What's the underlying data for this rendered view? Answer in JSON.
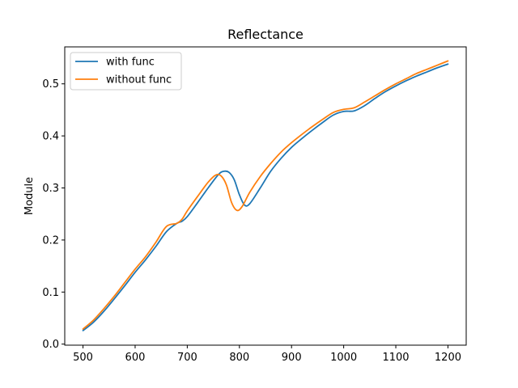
{
  "chart_data": {
    "type": "line",
    "title": "Reflectance",
    "xlabel": "",
    "ylabel": "Module",
    "xlim": [
      465,
      1235
    ],
    "ylim": [
      -0.002,
      0.571
    ],
    "xticks": [
      500,
      600,
      700,
      800,
      900,
      1000,
      1100,
      1200
    ],
    "yticks": [
      0.0,
      0.1,
      0.2,
      0.3,
      0.4,
      0.5
    ],
    "ytick_labels": [
      "0.0",
      "0.1",
      "0.2",
      "0.3",
      "0.4",
      "0.5"
    ],
    "grid": false,
    "legend": {
      "placement": "upper-left"
    },
    "series": [
      {
        "name": "with func",
        "color": "#1f77b4",
        "points": [
          [
            500,
            0.026
          ],
          [
            520,
            0.042
          ],
          [
            540,
            0.063
          ],
          [
            560,
            0.087
          ],
          [
            580,
            0.112
          ],
          [
            600,
            0.138
          ],
          [
            620,
            0.162
          ],
          [
            640,
            0.188
          ],
          [
            660,
            0.216
          ],
          [
            680,
            0.232
          ],
          [
            690,
            0.236
          ],
          [
            700,
            0.245
          ],
          [
            720,
            0.272
          ],
          [
            740,
            0.3
          ],
          [
            760,
            0.326
          ],
          [
            770,
            0.332
          ],
          [
            780,
            0.33
          ],
          [
            790,
            0.316
          ],
          [
            800,
            0.287
          ],
          [
            810,
            0.267
          ],
          [
            820,
            0.27
          ],
          [
            840,
            0.3
          ],
          [
            860,
            0.332
          ],
          [
            880,
            0.357
          ],
          [
            900,
            0.378
          ],
          [
            920,
            0.395
          ],
          [
            940,
            0.411
          ],
          [
            960,
            0.426
          ],
          [
            980,
            0.44
          ],
          [
            1000,
            0.447
          ],
          [
            1020,
            0.448
          ],
          [
            1040,
            0.458
          ],
          [
            1060,
            0.472
          ],
          [
            1080,
            0.485
          ],
          [
            1100,
            0.496
          ],
          [
            1120,
            0.506
          ],
          [
            1140,
            0.515
          ],
          [
            1160,
            0.523
          ],
          [
            1180,
            0.531
          ],
          [
            1200,
            0.538
          ]
        ]
      },
      {
        "name": "without func",
        "color": "#ff7f0e",
        "points": [
          [
            500,
            0.029
          ],
          [
            520,
            0.046
          ],
          [
            540,
            0.068
          ],
          [
            560,
            0.092
          ],
          [
            580,
            0.118
          ],
          [
            600,
            0.144
          ],
          [
            620,
            0.168
          ],
          [
            640,
            0.196
          ],
          [
            660,
            0.226
          ],
          [
            680,
            0.232
          ],
          [
            690,
            0.24
          ],
          [
            700,
            0.256
          ],
          [
            720,
            0.284
          ],
          [
            740,
            0.311
          ],
          [
            755,
            0.325
          ],
          [
            765,
            0.323
          ],
          [
            775,
            0.306
          ],
          [
            785,
            0.272
          ],
          [
            795,
            0.257
          ],
          [
            805,
            0.264
          ],
          [
            820,
            0.292
          ],
          [
            840,
            0.322
          ],
          [
            860,
            0.347
          ],
          [
            880,
            0.369
          ],
          [
            900,
            0.387
          ],
          [
            920,
            0.403
          ],
          [
            940,
            0.418
          ],
          [
            960,
            0.432
          ],
          [
            980,
            0.445
          ],
          [
            1000,
            0.451
          ],
          [
            1020,
            0.454
          ],
          [
            1040,
            0.465
          ],
          [
            1060,
            0.477
          ],
          [
            1080,
            0.489
          ],
          [
            1100,
            0.5
          ],
          [
            1120,
            0.51
          ],
          [
            1140,
            0.52
          ],
          [
            1160,
            0.528
          ],
          [
            1180,
            0.536
          ],
          [
            1200,
            0.544
          ]
        ]
      }
    ]
  }
}
